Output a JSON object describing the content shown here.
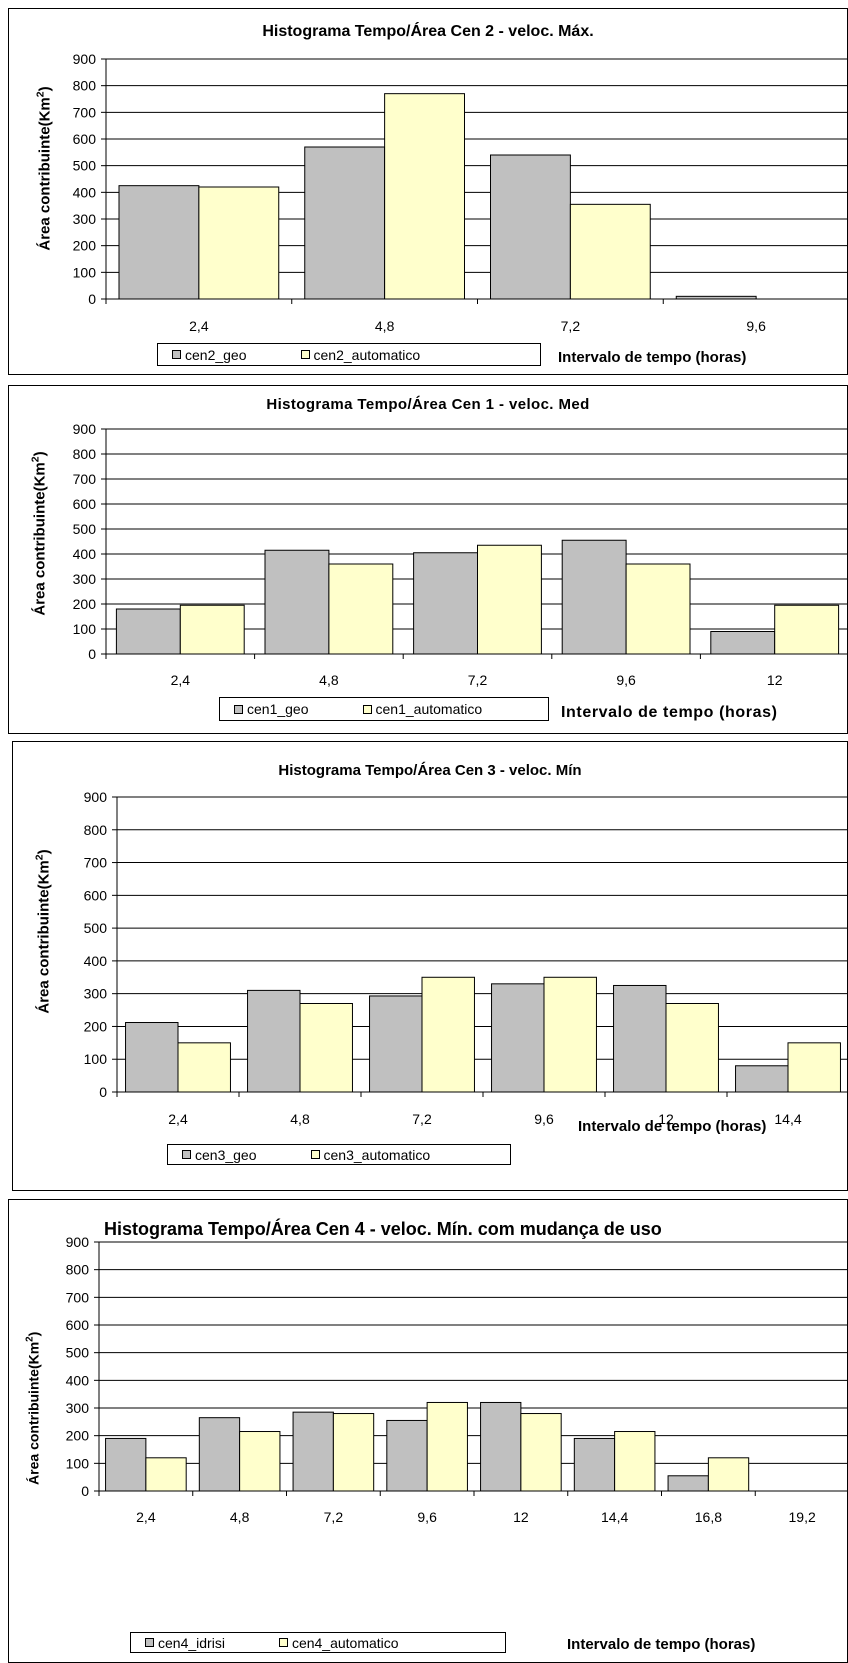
{
  "colors": {
    "series_a": "#c0c0c0",
    "series_b": "#ffffcc",
    "grid": "#000000"
  },
  "chart_data": [
    {
      "type": "bar",
      "title": "Histograma Tempo/Área Cen 2 - veloc. Máx.",
      "ylabel_main": "Área contribuinte(Km",
      "ylabel_sup": "2",
      "ylabel_tail": ")",
      "xlabel": "Intervalo de tempo (horas)",
      "categories": [
        "2,4",
        "4,8",
        "7,2",
        "9,6"
      ],
      "yticks": [
        "0",
        "100",
        "200",
        "300",
        "400",
        "500",
        "600",
        "700",
        "800",
        "900"
      ],
      "ylim": [
        0,
        900
      ],
      "series": [
        {
          "name": "cen2_geo",
          "values": [
            425,
            570,
            540,
            10
          ]
        },
        {
          "name": "cen2_automatico",
          "values": [
            420,
            770,
            355,
            0
          ]
        }
      ]
    },
    {
      "type": "bar",
      "title": "Histograma Tempo/Área Cen 1 - veloc. Med",
      "ylabel_main": "Área contribuinte(Km",
      "ylabel_sup": "2",
      "ylabel_tail": ")",
      "xlabel": "Intervalo de tempo (horas)",
      "categories": [
        "2,4",
        "4,8",
        "7,2",
        "9,6",
        "12"
      ],
      "yticks": [
        "0",
        "100",
        "200",
        "300",
        "400",
        "500",
        "600",
        "700",
        "800",
        "900"
      ],
      "ylim": [
        0,
        900
      ],
      "series": [
        {
          "name": "cen1_geo",
          "values": [
            180,
            415,
            405,
            455,
            90
          ]
        },
        {
          "name": "cen1_automatico",
          "values": [
            195,
            360,
            435,
            360,
            195
          ]
        }
      ]
    },
    {
      "type": "bar",
      "title": "Histograma Tempo/Área Cen 3 - veloc. Mín",
      "ylabel_main": "Área contribuinte(Km",
      "ylabel_sup": "2",
      "ylabel_tail": ")",
      "xlabel": "Intervalo de tempo (horas)",
      "categories": [
        "2,4",
        "4,8",
        "7,2",
        "9,6",
        "12",
        "14,4"
      ],
      "yticks": [
        "0",
        "100",
        "200",
        "300",
        "400",
        "500",
        "600",
        "700",
        "800",
        "900"
      ],
      "ylim": [
        0,
        900
      ],
      "series": [
        {
          "name": "cen3_geo",
          "values": [
            212,
            310,
            293,
            330,
            325,
            80
          ]
        },
        {
          "name": "cen3_automatico",
          "values": [
            150,
            270,
            350,
            350,
            270,
            150
          ]
        }
      ]
    },
    {
      "type": "bar",
      "title": "Histograma Tempo/Área Cen 4 - veloc. Mín. com mudança de uso",
      "ylabel_main": "Área contribuinte(Km",
      "ylabel_sup": "2",
      "ylabel_tail": ")",
      "xlabel": "Intervalo de tempo (horas)",
      "categories": [
        "2,4",
        "4,8",
        "7,2",
        "9,6",
        "12",
        "14,4",
        "16,8",
        "19,2"
      ],
      "yticks": [
        "0",
        "100",
        "200",
        "300",
        "400",
        "500",
        "600",
        "700",
        "800",
        "900"
      ],
      "ylim": [
        0,
        900
      ],
      "series": [
        {
          "name": "cen4_idrisi",
          "values": [
            190,
            265,
            285,
            255,
            320,
            190,
            55,
            0
          ]
        },
        {
          "name": "cen4_automatico",
          "values": [
            120,
            215,
            280,
            320,
            280,
            215,
            120,
            0
          ]
        }
      ]
    }
  ]
}
